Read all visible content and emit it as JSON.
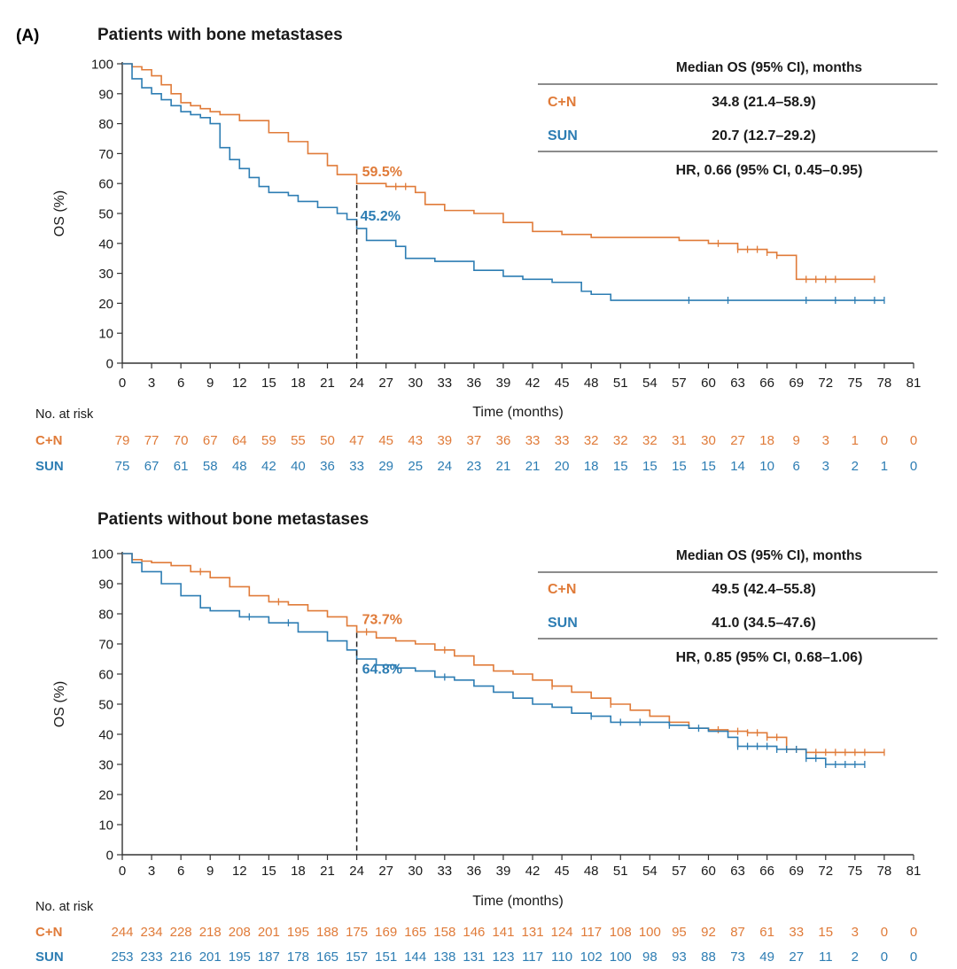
{
  "panel_label": "(A)",
  "colors": {
    "cn": "#e07b39",
    "sun": "#2d7db3",
    "axis": "#333333",
    "text": "#1a1a1a",
    "rule": "#666666"
  },
  "chart_data": [
    {
      "type": "line",
      "title": "Patients with bone metastases",
      "xlabel": "Time (months)",
      "ylabel": "OS (%)",
      "xlim": [
        0,
        81
      ],
      "ylim": [
        0,
        100
      ],
      "xticks": [
        0,
        3,
        6,
        9,
        12,
        15,
        18,
        21,
        24,
        27,
        30,
        33,
        36,
        39,
        42,
        45,
        48,
        51,
        54,
        57,
        60,
        63,
        66,
        69,
        72,
        75,
        78,
        81
      ],
      "yticks": [
        0,
        10,
        20,
        30,
        40,
        50,
        60,
        70,
        80,
        90,
        100
      ],
      "marker_x": 24,
      "annotations": [
        {
          "series": "C+N",
          "text": "59.5%",
          "x": 24,
          "y": 59.5,
          "pos": "above"
        },
        {
          "series": "SUN",
          "text": "45.2%",
          "x": 24,
          "y": 45.2,
          "pos": "right"
        }
      ],
      "stats_table": {
        "header": "Median OS (95% CI), months",
        "rows": [
          {
            "label": "C+N",
            "value": "34.8 (21.4–58.9)"
          },
          {
            "label": "SUN",
            "value": "20.7 (12.7–29.2)"
          }
        ],
        "footer": "HR, 0.66 (95% CI, 0.45–0.95)"
      },
      "series": [
        {
          "name": "C+N",
          "x": [
            0,
            1,
            2,
            3,
            4,
            5,
            6,
            7,
            8,
            9,
            10,
            12,
            15,
            17,
            19,
            21,
            22,
            24,
            27,
            30,
            31,
            33,
            36,
            39,
            42,
            45,
            48,
            54,
            57,
            60,
            63,
            66,
            67,
            68,
            69,
            71,
            73,
            77
          ],
          "y": [
            100,
            99,
            98,
            96,
            93,
            90,
            87,
            86,
            85,
            84,
            83,
            81,
            77,
            74,
            70,
            66,
            63,
            60,
            59,
            57,
            53,
            51,
            50,
            47,
            44,
            43,
            42,
            42,
            41,
            40,
            38,
            37,
            36,
            36,
            28,
            28,
            28,
            28
          ],
          "censor_x": [
            28,
            29,
            61,
            63,
            64,
            65,
            66,
            67,
            70,
            71,
            72,
            73,
            77
          ]
        },
        {
          "name": "SUN",
          "x": [
            0,
            1,
            2,
            3,
            4,
            5,
            6,
            7,
            8,
            9,
            10,
            11,
            12,
            13,
            14,
            15,
            17,
            18,
            20,
            22,
            23,
            24,
            25,
            28,
            29,
            32,
            36,
            39,
            41,
            44,
            47,
            48,
            50,
            52,
            55,
            60,
            65,
            70,
            75,
            78
          ],
          "y": [
            100,
            95,
            92,
            90,
            88,
            86,
            84,
            83,
            82,
            80,
            72,
            68,
            65,
            62,
            59,
            57,
            56,
            54,
            52,
            50,
            48,
            45,
            41,
            39,
            35,
            34,
            31,
            29,
            28,
            27,
            24,
            23,
            21,
            21,
            21,
            21,
            21,
            21,
            21,
            21
          ],
          "censor_x": [
            58,
            62,
            70,
            73,
            75,
            77,
            78
          ]
        }
      ],
      "risk_table": {
        "label": "No. at risk",
        "rows": [
          {
            "name": "C+N",
            "values": [
              "79",
              "77",
              "70",
              "67",
              "64",
              "59",
              "55",
              "50",
              "47",
              "45",
              "43",
              "39",
              "37",
              "36",
              "33",
              "33",
              "32",
              "32",
              "32",
              "31",
              "30",
              "27",
              "18",
              "9",
              "3",
              "1",
              "0",
              "0"
            ]
          },
          {
            "name": "SUN",
            "values": [
              "75",
              "67",
              "61",
              "58",
              "48",
              "42",
              "40",
              "36",
              "33",
              "29",
              "25",
              "24",
              "23",
              "21",
              "21",
              "20",
              "18",
              "15",
              "15",
              "15",
              "15",
              "14",
              "10",
              "6",
              "3",
              "2",
              "1",
              "0"
            ]
          }
        ]
      }
    },
    {
      "type": "line",
      "title": "Patients without bone metastases",
      "xlabel": "Time (months)",
      "ylabel": "OS (%)",
      "xlim": [
        0,
        81
      ],
      "ylim": [
        0,
        100
      ],
      "xticks": [
        0,
        3,
        6,
        9,
        12,
        15,
        18,
        21,
        24,
        27,
        30,
        33,
        36,
        39,
        42,
        45,
        48,
        51,
        54,
        57,
        60,
        63,
        66,
        69,
        72,
        75,
        78,
        81
      ],
      "yticks": [
        0,
        10,
        20,
        30,
        40,
        50,
        60,
        70,
        80,
        90,
        100
      ],
      "marker_x": 24,
      "annotations": [
        {
          "series": "C+N",
          "text": "73.7%",
          "x": 24,
          "y": 73.7,
          "pos": "above"
        },
        {
          "series": "SUN",
          "text": "64.8%",
          "x": 24,
          "y": 64.8,
          "pos": "below"
        }
      ],
      "stats_table": {
        "header": "Median OS (95% CI), months",
        "rows": [
          {
            "label": "C+N",
            "value": "49.5 (42.4–55.8)"
          },
          {
            "label": "SUN",
            "value": "41.0 (34.5–47.6)"
          }
        ],
        "footer": "HR, 0.85 (95% CI, 0.68–1.06)"
      },
      "series": [
        {
          "name": "C+N",
          "x": [
            0,
            1,
            2,
            3,
            5,
            7,
            9,
            11,
            13,
            15,
            17,
            19,
            21,
            23,
            24,
            26,
            28,
            30,
            32,
            34,
            36,
            38,
            40,
            42,
            44,
            46,
            48,
            50,
            52,
            54,
            56,
            58,
            60,
            62,
            64,
            66,
            68,
            70,
            72,
            74,
            76,
            78
          ],
          "y": [
            100,
            98,
            97.5,
            97,
            96,
            94,
            92,
            89,
            86,
            84,
            83,
            81,
            79,
            76,
            74,
            72,
            71,
            70,
            68,
            66,
            63,
            61,
            60,
            58,
            56,
            54,
            52,
            50,
            48,
            46,
            44,
            42,
            41.5,
            41,
            40.5,
            39,
            35,
            34,
            34,
            34,
            34,
            34
          ],
          "censor_x": [
            8,
            16,
            25,
            33,
            44,
            50,
            61,
            63,
            64,
            65,
            66,
            67,
            68,
            69,
            70,
            71,
            72,
            73,
            74,
            75,
            76,
            78
          ]
        },
        {
          "name": "SUN",
          "x": [
            0,
            1,
            2,
            4,
            6,
            8,
            9,
            12,
            15,
            18,
            21,
            23,
            24,
            26,
            28,
            30,
            32,
            34,
            36,
            38,
            40,
            42,
            44,
            46,
            48,
            50,
            52,
            54,
            56,
            58,
            60,
            62,
            63,
            65,
            67,
            70,
            72,
            74,
            76
          ],
          "y": [
            100,
            97,
            94,
            90,
            86,
            82,
            81,
            79,
            77,
            74,
            71,
            68,
            65,
            63,
            62,
            61,
            59,
            58,
            56,
            54,
            52,
            50,
            49,
            47,
            46,
            44,
            44,
            44,
            43,
            42,
            41,
            39,
            36,
            36,
            35,
            32,
            30,
            30,
            30
          ],
          "censor_x": [
            13,
            17,
            33,
            48,
            51,
            53,
            56,
            59,
            63,
            64,
            65,
            66,
            67,
            68,
            69,
            70,
            71,
            72,
            73,
            74,
            75,
            76
          ]
        }
      ],
      "risk_table": {
        "label": "No. at risk",
        "rows": [
          {
            "name": "C+N",
            "values": [
              "244",
              "234",
              "228",
              "218",
              "208",
              "201",
              "195",
              "188",
              "175",
              "169",
              "165",
              "158",
              "146",
              "141",
              "131",
              "124",
              "117",
              "108",
              "100",
              "95",
              "92",
              "87",
              "61",
              "33",
              "15",
              "3",
              "0",
              "0"
            ]
          },
          {
            "name": "SUN",
            "values": [
              "253",
              "233",
              "216",
              "201",
              "195",
              "187",
              "178",
              "165",
              "157",
              "151",
              "144",
              "138",
              "131",
              "123",
              "117",
              "110",
              "102",
              "100",
              "98",
              "93",
              "88",
              "73",
              "49",
              "27",
              "11",
              "2",
              "0",
              "0"
            ]
          }
        ]
      }
    }
  ]
}
